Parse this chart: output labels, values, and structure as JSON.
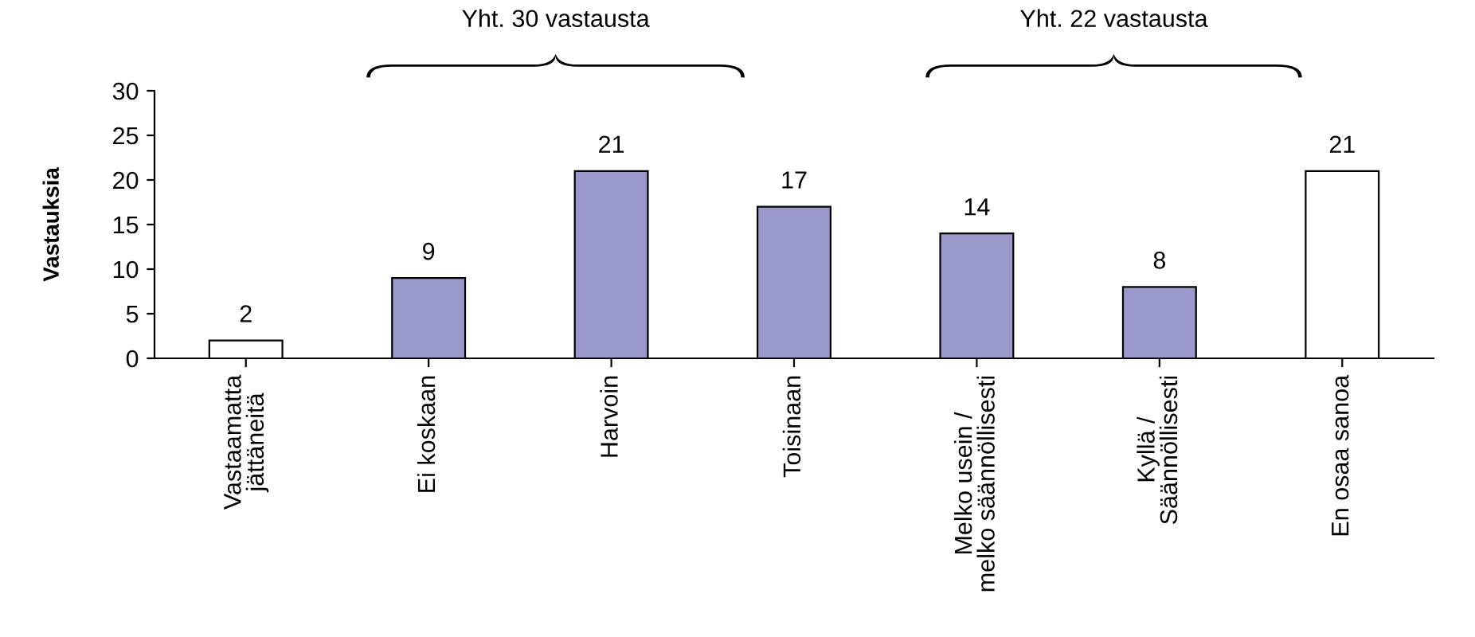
{
  "chart_data": {
    "type": "bar",
    "ylabel": "Vastauksia",
    "categories": [
      "Vastaamatta\njättäneitä",
      "Ei koskaan",
      "Harvoin",
      "Toisinaan",
      "Melko usein /\nmelko säännöllisesti",
      "Kyllä /\nSäännöllisesti",
      "En osaa sanoa"
    ],
    "values": [
      2,
      9,
      21,
      17,
      14,
      8,
      21
    ],
    "colors": [
      "#ffffff",
      "#9999cc",
      "#9999cc",
      "#9999cc",
      "#9999cc",
      "#9999cc",
      "#ffffff"
    ],
    "ylim": [
      0,
      30
    ],
    "yticks": [
      0,
      5,
      10,
      15,
      20,
      25,
      30
    ],
    "grid": false,
    "legend": false,
    "data_labels": true,
    "annotations": [
      "Yht. 30 vastausta",
      "Yht. 22 vastausta"
    ]
  }
}
